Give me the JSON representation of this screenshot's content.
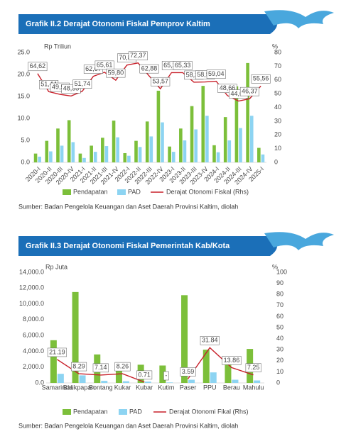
{
  "chart_data": [
    {
      "type": "bar",
      "title": "Grafik II.2 Derajat Otonomi Fiskal Pemprov Kaltim",
      "y_label": "Rp Triliun",
      "y2_label": "%",
      "categories": [
        "2020-I",
        "2020-II",
        "2020-III",
        "2020-IV",
        "2021-I",
        "2021-II",
        "2021-III",
        "2021-IV",
        "2022-I",
        "2022-II",
        "2022-III",
        "2022-IV",
        "2023-I",
        "2023-II",
        "2023-III",
        "2023-IV",
        "2024-I",
        "2024-II",
        "2024-III",
        "2024-IV",
        "2025-I"
      ],
      "series": [
        {
          "name": "Pendapatan",
          "color": "#7cbf3a",
          "values": [
            2.0,
            4.9,
            7.7,
            9.6,
            2.0,
            3.8,
            5.6,
            9.5,
            2.1,
            4.9,
            9.3,
            16.3,
            3.6,
            7.7,
            12.8,
            17.4,
            3.9,
            10.3,
            17.3,
            22.6,
            3.3
          ]
        },
        {
          "name": "PAD",
          "color": "#8dd4f2",
          "values": [
            1.3,
            2.5,
            3.8,
            4.6,
            1.0,
            2.4,
            3.7,
            5.7,
            1.5,
            3.5,
            5.9,
            9.1,
            2.4,
            5.0,
            7.5,
            10.6,
            2.3,
            5.0,
            7.8,
            10.6,
            1.8
          ]
        },
        {
          "name": "Derajat Otonomi Fiskal (Rhs)",
          "type": "line",
          "axis": "y2",
          "color": "#c8202a",
          "values": [
            64.62,
            51.44,
            49.53,
            48.33,
            51.74,
            62.67,
            65.61,
            59.8,
            70.83,
            72.37,
            62.88,
            53.57,
            65.33,
            65.33,
            58.36,
            58.53,
            59.04,
            48.66,
            44.62,
            46.37,
            55.56
          ],
          "value_labels": [
            "64,62",
            "51,44",
            "49,53",
            "48,33",
            "51,74",
            "62,67",
            "65,61",
            "59,80",
            "70,83",
            "72,37",
            "62,88",
            "53,57",
            "65,33",
            "65,33",
            "58,36",
            "58,53",
            "59,04",
            "48,66",
            "44,62",
            "46,37",
            "55,56"
          ]
        }
      ],
      "ylim": [
        0,
        25
      ],
      "yticks": [
        {
          "value": 0,
          "label": "0.0"
        },
        {
          "value": 5,
          "label": "5.0"
        },
        {
          "value": 10,
          "label": "10.0"
        },
        {
          "value": 15,
          "label": "15.0"
        },
        {
          "value": 20,
          "label": "20.0"
        },
        {
          "value": 25,
          "label": "25.0"
        }
      ],
      "y2lim": [
        0,
        80
      ],
      "y2ticks": [
        0,
        10,
        20,
        30,
        40,
        50,
        60,
        70,
        80
      ],
      "source": "Sumber: Badan Pengelola Keuangan dan Aset Daerah Provinsi Kaltim, diolah"
    },
    {
      "type": "bar",
      "title": "Grafik II.3 Derajat Otonomi Fiskal Pemerintah Kab/Kota",
      "y_label": "Rp Juta",
      "y2_label": "%",
      "categories": [
        "Samarinda",
        "Balikpapan",
        "Bontang",
        "Kukar",
        "Kubar",
        "Kutim",
        "Paser",
        "PPU",
        "Berau",
        "Mahulu"
      ],
      "series": [
        {
          "name": "Pendapatan",
          "color": "#7cbf3a",
          "values": [
            5400,
            11500,
            3600,
            2500,
            2300,
            2200,
            11100,
            4200,
            2900,
            4300
          ]
        },
        {
          "name": "PAD",
          "color": "#8dd4f2",
          "values": [
            1150,
            950,
            260,
            210,
            160,
            60,
            400,
            1330,
            400,
            310
          ]
        },
        {
          "name": "Derajat Otonomi Fikal (Rhs)",
          "type": "line",
          "axis": "y2",
          "color": "#c8202a",
          "values": [
            21.19,
            8.29,
            7.14,
            8.26,
            0.71,
            null,
            3.59,
            31.84,
            13.86,
            7.25
          ],
          "value_labels": [
            "21.19",
            "8.29",
            "7.14",
            "8.26",
            "0.71",
            "-",
            "3.59",
            "31.84",
            "13.86",
            "7.25"
          ]
        }
      ],
      "ylim": [
        0,
        14000
      ],
      "yticks": [
        {
          "value": 0,
          "label": "0.0"
        },
        {
          "value": 2000,
          "label": "2,000.0"
        },
        {
          "value": 4000,
          "label": "4,000.0"
        },
        {
          "value": 6000,
          "label": "6,000.0"
        },
        {
          "value": 8000,
          "label": "8,000.0"
        },
        {
          "value": 10000,
          "label": "10,000.0"
        },
        {
          "value": 12000,
          "label": "12,000.0"
        },
        {
          "value": 14000,
          "label": "14,000.0"
        }
      ],
      "y2lim": [
        0,
        100
      ],
      "y2ticks": [
        0,
        10,
        20,
        30,
        40,
        50,
        60,
        70,
        80,
        90,
        100
      ],
      "source": "Sumber: Badan Pengelola Keuangan dan Aset Daerah Provinsi Kaltim, diolah"
    }
  ]
}
